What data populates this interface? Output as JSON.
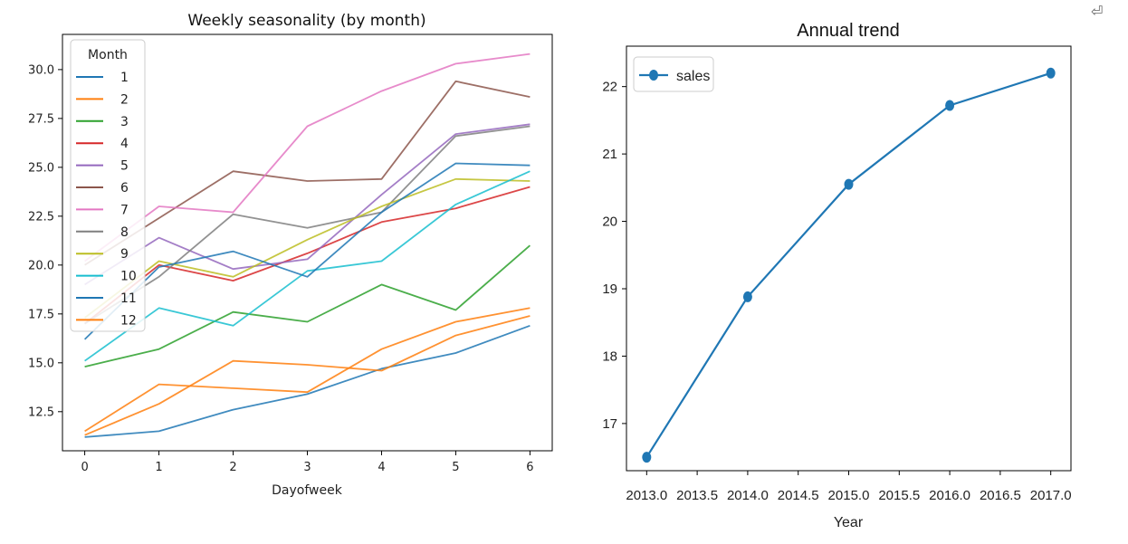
{
  "icons": {
    "corner": "return-arrow-icon"
  },
  "chart_data": [
    {
      "type": "line",
      "title": "Weekly seasonality (by month)",
      "xlabel": "Dayofweek",
      "ylabel": "",
      "x": [
        0,
        1,
        2,
        3,
        4,
        5,
        6
      ],
      "xticks": [
        0,
        1,
        2,
        3,
        4,
        5,
        6
      ],
      "yticks": [
        12.5,
        15.0,
        17.5,
        20.0,
        22.5,
        25.0,
        27.5,
        30.0
      ],
      "xlim": [
        -0.3,
        6.3
      ],
      "ylim": [
        10.5,
        31.8
      ],
      "grid": false,
      "legend": {
        "title": "Month",
        "placement": "upper-left"
      },
      "series": [
        {
          "name": "1",
          "color": "#1f77b4",
          "values": [
            11.2,
            11.5,
            12.6,
            13.4,
            14.7,
            15.5,
            16.9
          ]
        },
        {
          "name": "2",
          "color": "#ff7f0e",
          "values": [
            11.3,
            12.9,
            15.1,
            14.9,
            14.6,
            16.4,
            17.4
          ]
        },
        {
          "name": "3",
          "color": "#2ca02c",
          "values": [
            14.8,
            15.7,
            17.6,
            17.1,
            19.0,
            17.7,
            21.0
          ]
        },
        {
          "name": "4",
          "color": "#d62728",
          "values": [
            17.0,
            20.0,
            19.2,
            20.6,
            22.2,
            22.9,
            24.0
          ]
        },
        {
          "name": "5",
          "color": "#9467bd",
          "values": [
            19.0,
            21.4,
            19.8,
            20.3,
            23.6,
            26.7,
            27.2
          ]
        },
        {
          "name": "6",
          "color": "#8c564b",
          "values": [
            20.0,
            22.4,
            24.8,
            24.3,
            24.4,
            29.4,
            28.6
          ]
        },
        {
          "name": "7",
          "color": "#e377c2",
          "values": [
            20.2,
            23.0,
            22.7,
            27.1,
            28.9,
            30.3,
            30.8
          ]
        },
        {
          "name": "8",
          "color": "#7f7f7f",
          "values": [
            17.0,
            19.4,
            22.6,
            21.9,
            22.7,
            26.6,
            27.1
          ]
        },
        {
          "name": "9",
          "color": "#bcbd22",
          "values": [
            17.3,
            20.2,
            19.4,
            21.3,
            23.0,
            24.4,
            24.3
          ]
        },
        {
          "name": "10",
          "color": "#17becf",
          "values": [
            15.1,
            17.8,
            16.9,
            19.7,
            20.2,
            23.1,
            24.8
          ]
        },
        {
          "name": "11",
          "color": "#1f77b4",
          "values": [
            16.2,
            19.9,
            20.7,
            19.4,
            22.7,
            25.2,
            25.1
          ]
        },
        {
          "name": "12",
          "color": "#ff7f0e",
          "values": [
            11.5,
            13.9,
            13.7,
            13.5,
            15.7,
            17.1,
            17.8
          ]
        }
      ]
    },
    {
      "type": "line",
      "title": "Annual trend",
      "xlabel": "Year",
      "ylabel": "",
      "x": [
        2013.0,
        2014.0,
        2015.0,
        2016.0,
        2017.0
      ],
      "xticks": [
        "2013.0",
        "2013.5",
        "2014.0",
        "2014.5",
        "2015.0",
        "2015.5",
        "2016.0",
        "2016.5",
        "2017.0"
      ],
      "yticks": [
        17,
        18,
        19,
        20,
        21,
        22
      ],
      "xlim": [
        2012.8,
        2017.2
      ],
      "ylim": [
        16.3,
        22.6
      ],
      "grid": false,
      "markers": true,
      "legend": {
        "placement": "upper-left"
      },
      "series": [
        {
          "name": "sales",
          "color": "#1f77b4",
          "values": [
            16.5,
            18.88,
            20.55,
            21.72,
            22.2
          ]
        }
      ]
    }
  ]
}
